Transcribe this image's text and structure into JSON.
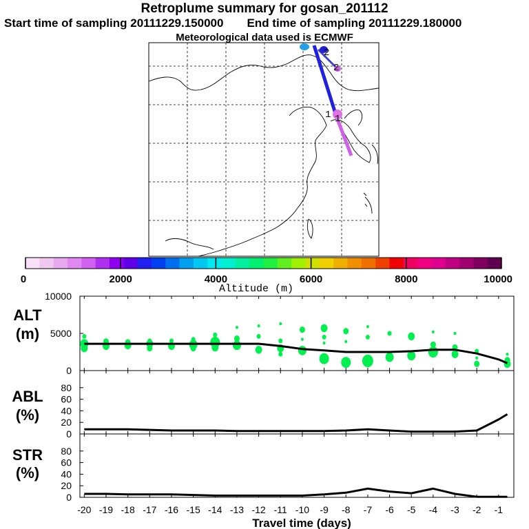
{
  "header": {
    "title": "Retroplume summary for gosan_201112",
    "start_label": "Start time of sampling 20111229.150000",
    "end_label": "End time of sampling 20111229.180000",
    "met_label": "Meteorological data used is ECMWF"
  },
  "map": {
    "trajectory_labels": [
      "2",
      "2",
      "1",
      "1"
    ]
  },
  "colorbar": {
    "title": "Altitude (m)",
    "ticks": [
      "0",
      "2000",
      "4000",
      "6000",
      "8000",
      "10000"
    ],
    "colors": [
      "#f8e0f8",
      "#f0c8f0",
      "#e8a8f0",
      "#e088f0",
      "#d060f0",
      "#b030f0",
      "#9000f0",
      "#6000e8",
      "#2020f0",
      "#0040f0",
      "#0070f0",
      "#00a0f0",
      "#00c8f0",
      "#00e8f0",
      "#00f0d0",
      "#00f0a0",
      "#00f070",
      "#20f040",
      "#60f020",
      "#a0f000",
      "#d0e000",
      "#f0d000",
      "#f0b000",
      "#f09000",
      "#f07000",
      "#f04000",
      "#f00000",
      "#f00060",
      "#f00080",
      "#e00090",
      "#c00080",
      "#a00070",
      "#800060",
      "#600050"
    ]
  },
  "chart_data": [
    {
      "type": "line",
      "name": "ALT",
      "ylabel": "ALT",
      "yunit": "(m)",
      "ylim": [
        0,
        10000
      ],
      "yticks": [
        "10000",
        "5000",
        "0"
      ],
      "x": [
        -20,
        -19,
        -18,
        -17,
        -16,
        -15,
        -14,
        -13,
        -12,
        -11,
        -10,
        -9,
        -8,
        -7,
        -6,
        -5,
        -4,
        -3,
        -2,
        -1,
        -0.6
      ],
      "y": [
        3600,
        3600,
        3600,
        3600,
        3600,
        3600,
        3600,
        3600,
        3600,
        3300,
        2900,
        2700,
        2500,
        2500,
        2500,
        2600,
        2800,
        2800,
        2300,
        1500,
        1000
      ],
      "scatter_color": "#00f050",
      "scatter": [
        {
          "x": -20,
          "y": 4600,
          "s": 3
        },
        {
          "x": -20,
          "y": 3600,
          "s": 6
        },
        {
          "x": -20,
          "y": 3000,
          "s": 5
        },
        {
          "x": -19,
          "y": 3900,
          "s": 4
        },
        {
          "x": -19,
          "y": 3300,
          "s": 5
        },
        {
          "x": -18,
          "y": 3800,
          "s": 4
        },
        {
          "x": -18,
          "y": 3400,
          "s": 5
        },
        {
          "x": -17,
          "y": 4000,
          "s": 3
        },
        {
          "x": -17,
          "y": 3600,
          "s": 5
        },
        {
          "x": -17,
          "y": 3000,
          "s": 4
        },
        {
          "x": -16,
          "y": 4000,
          "s": 3
        },
        {
          "x": -16,
          "y": 3300,
          "s": 5
        },
        {
          "x": -15,
          "y": 4200,
          "s": 3
        },
        {
          "x": -15,
          "y": 3500,
          "s": 6
        },
        {
          "x": -15,
          "y": 3000,
          "s": 4
        },
        {
          "x": -14,
          "y": 4800,
          "s": 3
        },
        {
          "x": -14,
          "y": 3800,
          "s": 7
        },
        {
          "x": -14,
          "y": 3100,
          "s": 5
        },
        {
          "x": -13,
          "y": 5800,
          "s": 2
        },
        {
          "x": -13,
          "y": 4300,
          "s": 4
        },
        {
          "x": -13,
          "y": 3400,
          "s": 6
        },
        {
          "x": -12,
          "y": 6000,
          "s": 2
        },
        {
          "x": -12,
          "y": 4600,
          "s": 3
        },
        {
          "x": -12,
          "y": 2800,
          "s": 5
        },
        {
          "x": -11,
          "y": 6300,
          "s": 2
        },
        {
          "x": -11,
          "y": 4000,
          "s": 3
        },
        {
          "x": -11,
          "y": 3000,
          "s": 5
        },
        {
          "x": -11,
          "y": 2200,
          "s": 3
        },
        {
          "x": -10,
          "y": 5500,
          "s": 4
        },
        {
          "x": -10,
          "y": 4200,
          "s": 2
        },
        {
          "x": -10,
          "y": 2700,
          "s": 6
        },
        {
          "x": -9,
          "y": 5700,
          "s": 5
        },
        {
          "x": -9,
          "y": 4500,
          "s": 3
        },
        {
          "x": -9,
          "y": 3700,
          "s": 2
        },
        {
          "x": -9,
          "y": 1600,
          "s": 7
        },
        {
          "x": -8,
          "y": 5300,
          "s": 4
        },
        {
          "x": -8,
          "y": 3900,
          "s": 2
        },
        {
          "x": -8,
          "y": 1100,
          "s": 7
        },
        {
          "x": -7,
          "y": 5900,
          "s": 2
        },
        {
          "x": -7,
          "y": 4500,
          "s": 3
        },
        {
          "x": -7,
          "y": 1300,
          "s": 8
        },
        {
          "x": -6,
          "y": 5000,
          "s": 3
        },
        {
          "x": -6,
          "y": 1800,
          "s": 6
        },
        {
          "x": -5,
          "y": 4600,
          "s": 5
        },
        {
          "x": -5,
          "y": 2000,
          "s": 6
        },
        {
          "x": -4,
          "y": 5200,
          "s": 2
        },
        {
          "x": -4,
          "y": 3500,
          "s": 4
        },
        {
          "x": -4,
          "y": 2500,
          "s": 7
        },
        {
          "x": -3,
          "y": 5000,
          "s": 2
        },
        {
          "x": -3,
          "y": 3100,
          "s": 4
        },
        {
          "x": -3,
          "y": 2200,
          "s": 5
        },
        {
          "x": -2,
          "y": 2600,
          "s": 3
        },
        {
          "x": -2,
          "y": 1700,
          "s": 2
        },
        {
          "x": -2,
          "y": 900,
          "s": 4
        },
        {
          "x": -0.6,
          "y": 2200,
          "s": 2
        },
        {
          "x": -0.6,
          "y": 1400,
          "s": 4
        },
        {
          "x": -0.6,
          "y": 900,
          "s": 5
        }
      ]
    },
    {
      "type": "line",
      "name": "ABL",
      "ylabel": "ABL",
      "yunit": "(%)",
      "ylim": [
        0,
        100
      ],
      "yticks": [
        "80",
        "60",
        "40",
        "20",
        "0"
      ],
      "x": [
        -20,
        -19,
        -18,
        -17,
        -16,
        -15,
        -14,
        -13,
        -12,
        -11,
        -10,
        -9,
        -8,
        -7,
        -6,
        -5,
        -4,
        -3,
        -2,
        -1,
        -0.6
      ],
      "y": [
        8,
        8,
        8,
        7,
        6,
        6,
        6,
        5,
        5,
        5,
        5,
        5,
        6,
        8,
        6,
        4,
        4,
        4,
        6,
        25,
        34
      ]
    },
    {
      "type": "line",
      "name": "STR",
      "ylabel": "STR",
      "yunit": "(%)",
      "ylim": [
        0,
        100
      ],
      "yticks": [
        "80",
        "60",
        "40",
        "20",
        "0"
      ],
      "x": [
        -20,
        -19,
        -18,
        -17,
        -16,
        -15,
        -14,
        -13,
        -12,
        -11,
        -10,
        -9,
        -8,
        -7,
        -6,
        -5,
        -4,
        -3,
        -2,
        -1,
        -0.6
      ],
      "y": [
        6,
        6,
        5,
        5,
        5,
        4,
        3,
        3,
        3,
        3,
        3,
        5,
        8,
        15,
        10,
        7,
        15,
        6,
        1,
        1,
        1
      ],
      "xlabel": "Travel time (days)",
      "xticks": [
        "-20",
        "-19",
        "-18",
        "-17",
        "-16",
        "-15",
        "-14",
        "-13",
        "-12",
        "-11",
        "-10",
        "-9",
        "-8",
        "-7",
        "-6",
        "-5",
        "-4",
        "-3",
        "-2",
        "-1"
      ]
    }
  ]
}
